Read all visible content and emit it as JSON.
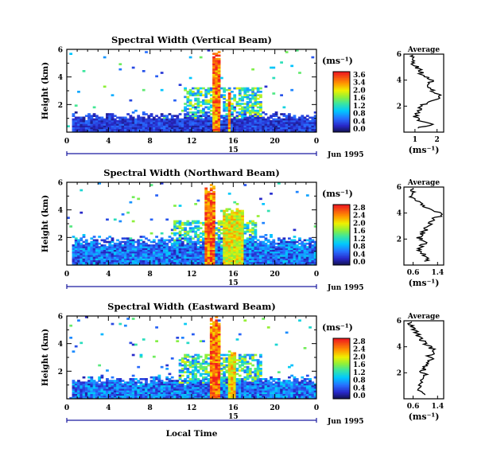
{
  "figure": {
    "xlabel": "Local Time",
    "date_label": "Jun 1995",
    "day_label": "15",
    "colorbar_unit": "(ms⁻¹)",
    "profile_unit": "(ms⁻¹)",
    "profile_title": "Average"
  },
  "chart_data": [
    {
      "type": "heatmap",
      "title": "Spectral Width (Vertical Beam)",
      "ylabel": "Height (km)",
      "xlim": [
        0,
        24
      ],
      "ylim": [
        0,
        6
      ],
      "x_ticks": [
        "0",
        "4",
        "8",
        "12",
        "16",
        "20",
        "0"
      ],
      "y_ticks": [
        "6",
        "4",
        "2"
      ],
      "colorbar_ticks": [
        "3.6",
        "3.4",
        "2.0",
        "1.6",
        "1.2",
        "0.8",
        "0.4",
        "0.0"
      ],
      "colorbar_range": [
        0,
        3.6
      ],
      "features": [
        {
          "x": [
            0.5,
            24
          ],
          "top": 1.2,
          "level": 0.55
        },
        {
          "x": [
            14.0,
            14.7
          ],
          "top": 6.0,
          "level": 3.6
        },
        {
          "x": [
            15.5,
            15.7
          ],
          "top": 3.2,
          "level": 3.4
        }
      ],
      "profile": {
        "title": "Average",
        "x_ticks": [
          "1",
          "2"
        ],
        "xlim": [
          0.5,
          2.3
        ],
        "ylim": [
          0,
          6
        ],
        "y_ticks": [
          "6",
          "4",
          "2"
        ],
        "height": [
          0.3,
          0.6,
          0.9,
          1.2,
          1.5,
          1.8,
          2.1,
          2.4,
          2.7,
          3.0,
          3.3,
          3.6,
          3.9,
          4.2,
          4.5,
          4.8,
          5.1,
          5.4,
          5.7,
          6.0
        ],
        "value": [
          1.0,
          1.9,
          1.2,
          1.0,
          1.1,
          1.2,
          1.4,
          1.7,
          2.2,
          1.9,
          1.7,
          1.5,
          1.8,
          1.6,
          1.3,
          1.2,
          1.0,
          0.9,
          1.0,
          0.8
        ]
      }
    },
    {
      "type": "heatmap",
      "title": "Spectral Width (Northward Beam)",
      "ylabel": "Height (km)",
      "xlim": [
        0,
        24
      ],
      "ylim": [
        0,
        6
      ],
      "x_ticks": [
        "0",
        "4",
        "8",
        "12",
        "16",
        "20",
        "0"
      ],
      "y_ticks": [
        "6",
        "4",
        "2"
      ],
      "colorbar_ticks": [
        "2.8",
        "2.4",
        "2.0",
        "1.6",
        "1.2",
        "0.8",
        "0.4",
        "0.0"
      ],
      "colorbar_range": [
        0,
        2.8
      ],
      "features": [
        {
          "x": [
            0.5,
            24
          ],
          "top": 1.8,
          "level": 0.7
        },
        {
          "x": [
            13.2,
            14.2
          ],
          "top": 6.0,
          "level": 2.8
        },
        {
          "x": [
            15.0,
            16.8
          ],
          "top": 4.2,
          "level": 2.2
        }
      ],
      "profile": {
        "title": "Average",
        "x_ticks": [
          "0.6",
          "1.4"
        ],
        "xlim": [
          0.3,
          1.6
        ],
        "ylim": [
          0,
          6
        ],
        "y_ticks": [
          "6",
          "4",
          "2"
        ],
        "height": [
          0.3,
          0.6,
          0.9,
          1.2,
          1.5,
          1.8,
          2.1,
          2.4,
          2.7,
          3.0,
          3.3,
          3.6,
          3.9,
          4.2,
          4.5,
          4.8,
          5.1,
          5.4,
          5.7,
          6.0
        ],
        "value": [
          1.0,
          1.1,
          0.9,
          0.8,
          0.9,
          1.0,
          0.8,
          0.9,
          1.0,
          1.1,
          1.2,
          1.3,
          1.6,
          1.2,
          1.0,
          0.8,
          0.6,
          0.5,
          0.6,
          0.5
        ]
      }
    },
    {
      "type": "heatmap",
      "title": "Spectral Width (Eastward Beam)",
      "ylabel": "Height (km)",
      "xlim": [
        0,
        24
      ],
      "ylim": [
        0,
        6
      ],
      "x_ticks": [
        "0",
        "4",
        "8",
        "12",
        "16",
        "20",
        "0"
      ],
      "y_ticks": [
        "6",
        "4",
        "2"
      ],
      "colorbar_ticks": [
        "2.8",
        "2.4",
        "2.0",
        "1.6",
        "1.2",
        "0.8",
        "0.4",
        "0.0"
      ],
      "colorbar_range": [
        0,
        2.8
      ],
      "features": [
        {
          "x": [
            0.5,
            24
          ],
          "top": 1.4,
          "level": 0.7
        },
        {
          "x": [
            13.7,
            14.6
          ],
          "top": 6.0,
          "level": 2.8
        },
        {
          "x": [
            15.5,
            16.2
          ],
          "top": 3.5,
          "level": 2.3
        }
      ],
      "profile": {
        "title": "Average",
        "x_ticks": [
          "0.6",
          "1.4"
        ],
        "xlim": [
          0.3,
          1.6
        ],
        "ylim": [
          0,
          6
        ],
        "y_ticks": [
          "6",
          "4",
          "2"
        ],
        "height": [
          0.3,
          0.6,
          0.9,
          1.2,
          1.5,
          1.8,
          2.1,
          2.4,
          2.7,
          3.0,
          3.3,
          3.6,
          3.9,
          4.2,
          4.5,
          4.8,
          5.1,
          5.4,
          5.7,
          6.0
        ],
        "value": [
          1.0,
          0.8,
          0.9,
          0.8,
          0.9,
          1.0,
          0.9,
          1.0,
          1.1,
          1.2,
          1.1,
          1.3,
          1.2,
          1.0,
          0.9,
          0.8,
          0.7,
          0.6,
          0.5,
          0.5
        ]
      }
    }
  ]
}
